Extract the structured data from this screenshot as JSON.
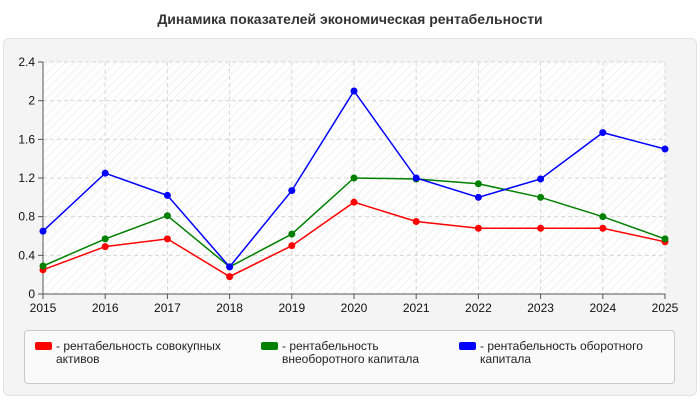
{
  "chart_data": {
    "type": "line",
    "title": "Динамика показателей экономическая рентабельности",
    "x": [
      "2015",
      "2016",
      "2017",
      "2018",
      "2019",
      "2020",
      "2021",
      "2022",
      "2023",
      "2024",
      "2025"
    ],
    "y_ticks": [
      "0",
      "0.4",
      "0.8",
      "1.2",
      "1.6",
      "2",
      "2.4"
    ],
    "ylim": [
      0,
      2.4
    ],
    "grid": true,
    "legend_position": "bottom",
    "series": [
      {
        "name": "- рентабельность совокупных активов",
        "color": "#ff0000",
        "values": [
          0.25,
          0.49,
          0.57,
          0.18,
          0.5,
          0.95,
          0.75,
          0.68,
          0.68,
          0.68,
          0.54
        ]
      },
      {
        "name": "- рентабельность внеоборотного капитала",
        "color": "#008000",
        "values": [
          0.29,
          0.57,
          0.81,
          0.28,
          0.62,
          1.2,
          1.19,
          1.14,
          1.0,
          0.8,
          0.57
        ]
      },
      {
        "name": "- рентабельность оборотного капитала",
        "color": "#0000ff",
        "values": [
          0.65,
          1.25,
          1.02,
          0.28,
          1.07,
          2.1,
          1.2,
          1.0,
          1.19,
          1.67,
          1.5
        ]
      }
    ]
  }
}
